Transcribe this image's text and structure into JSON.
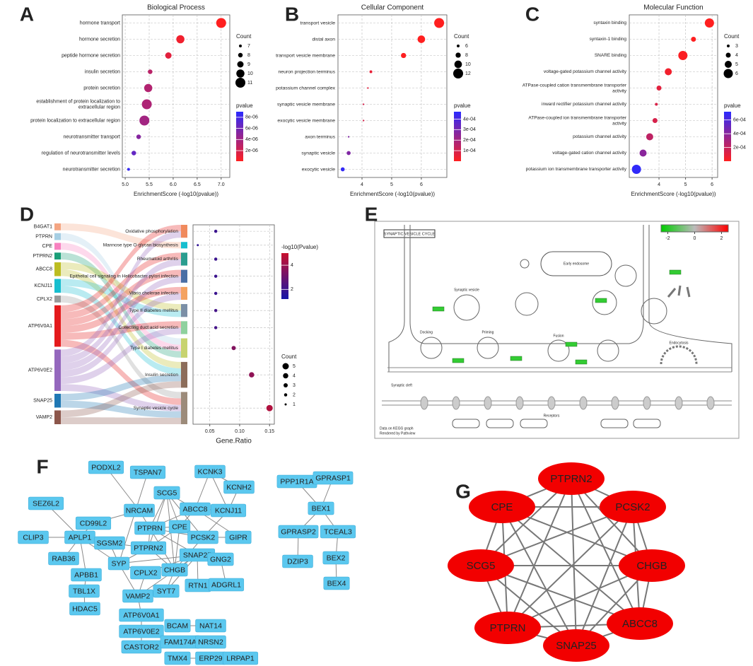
{
  "panel_labels": [
    "A",
    "B",
    "C",
    "D",
    "E",
    "F",
    "G"
  ],
  "chart_data": [
    {
      "type": "dot",
      "title": "Biological Process",
      "xlabel": "EnrichmentScore (-log10(pvalue))",
      "categories": [
        "hormone transport",
        "hormone secretion",
        "peptide hormone secretion",
        "insulin secretion",
        "protein secretion",
        "establishment of protein localization to extracellular region",
        "protein localization to extracellular region",
        "neurotransmitter transport",
        "regulation of neurotransmitter levels",
        "neurotransmitter secretion"
      ],
      "values": [
        7.0,
        6.15,
        5.9,
        5.52,
        5.48,
        5.45,
        5.4,
        5.28,
        5.18,
        5.07
      ],
      "counts": [
        11,
        10,
        9,
        8,
        10,
        11,
        11,
        8,
        8,
        7
      ],
      "pvalues": [
        1e-07,
        7e-07,
        1.3e-06,
        3e-06,
        3.3e-06,
        3.5e-06,
        4e-06,
        5.2e-06,
        6.6e-06,
        8.5e-06
      ],
      "xlim": [
        4.94,
        7.18
      ],
      "xticks": [
        {
          "value": 5,
          "label": "5.0"
        },
        5.5,
        {
          "value": 6,
          "label": "6.0"
        },
        6.5,
        {
          "value": 7,
          "label": "7.0"
        }
      ],
      "size_title": "Count",
      "size_ticks": [
        7,
        8,
        9,
        10,
        11
      ],
      "color_title": "pvalue",
      "color_lim": [
        1e-07,
        9e-06
      ],
      "color_range": [
        "#ff1f1f",
        "#2a2aff"
      ],
      "color_ticks": [
        {
          "value": 8e-06,
          "label": "8e-06"
        },
        {
          "value": 6e-06,
          "label": "6e-06"
        },
        {
          "value": 4e-06,
          "label": "4e-06"
        },
        {
          "value": 2e-06,
          "label": "2e-06"
        }
      ],
      "grid": true
    },
    {
      "type": "dot",
      "title": "Cellular Component",
      "xlabel": "EnrichmentScore (-log10(pvalue))",
      "categories": [
        "transport vesicle",
        "distal axon",
        "transport vesicle membrane",
        "neuron projection terminus",
        "potassium channel complex",
        "synaptic vesicle membrane",
        "exocytic vesicle membrane",
        "axon terminus",
        "synaptic vesicle",
        "exocytic vesicle"
      ],
      "values": [
        6.6,
        6.0,
        5.4,
        4.3,
        4.2,
        4.05,
        4.05,
        3.55,
        3.55,
        3.35
      ],
      "counts": [
        12,
        10,
        8,
        6,
        5,
        5,
        5,
        5,
        7,
        7
      ],
      "pvalues": [
        2.5e-07,
        1e-06,
        4e-06,
        5e-05,
        6.3e-05,
        9e-05,
        9e-05,
        0.00028,
        0.00028,
        0.00045
      ],
      "xlim": [
        3.19,
        6.86
      ],
      "xticks": [
        4,
        5,
        6
      ],
      "size_title": "Count",
      "size_ticks": [
        6,
        8,
        10,
        12
      ],
      "color_title": "pvalue",
      "color_lim": [
        1e-07,
        0.00047
      ],
      "color_range": [
        "#ff1f1f",
        "#2a2aff"
      ],
      "color_ticks": [
        {
          "value": 0.0004,
          "label": "4e-04"
        },
        {
          "value": 0.0003,
          "label": "3e-04"
        },
        {
          "value": 0.0002,
          "label": "2e-04"
        },
        {
          "value": 0.0001,
          "label": "1e-04"
        }
      ],
      "grid": true
    },
    {
      "type": "dot",
      "title": "Molecular Function",
      "xlabel": "EnrichmentScore (-log10(pvalue))",
      "categories": [
        "syntaxin binding",
        "syntaxin-1 binding",
        "SNARE binding",
        "voltage-gated potassium channel activity",
        "ATPase-coupled cation transmembrane transporter activity",
        "inward rectifier potassium channel activity",
        "ATPase-coupled ion transmembrane transporter activity",
        "potassium channel activity",
        "voltage-gated cation channel activity",
        "potassium ion transmembrane transporter activity"
      ],
      "values": [
        5.9,
        5.3,
        4.9,
        4.35,
        4.0,
        3.9,
        3.85,
        3.65,
        3.4,
        3.15
      ],
      "counts": [
        6,
        4,
        6,
        5,
        4,
        3,
        4,
        5,
        5,
        6
      ],
      "pvalues": [
        1.3e-06,
        5e-06,
        1.3e-05,
        4.5e-05,
        0.0001,
        0.00013,
        0.00014,
        0.00022,
        0.0004,
        0.0007
      ],
      "xlim": [
        2.88,
        6.21
      ],
      "xticks": [
        4,
        5,
        6
      ],
      "size_title": "Count",
      "size_ticks": [
        3,
        4,
        5,
        6
      ],
      "color_title": "pvalue",
      "color_lim": [
        1e-06,
        0.00072
      ],
      "color_range": [
        "#ff1f1f",
        "#2a2aff"
      ],
      "color_ticks": [
        {
          "value": 0.0006,
          "label": "6e-04"
        },
        {
          "value": 0.0004,
          "label": "4e-04"
        },
        {
          "value": 0.0002,
          "label": "2e-04"
        }
      ],
      "grid": true
    },
    {
      "type": "dot",
      "xlabel": "Gene.Ratio",
      "categories": [
        "Oxidative phosphorylation",
        "Mannose type O-glycan biosynthesis",
        "Rheumatoid arthritis",
        "Epithelial cell signaling in Helicobacter pylori infection",
        "Vibrio cholerae infection",
        "Type II diabetes mellitus",
        "Collecting duct acid secretion",
        "Type I diabetes mellitus",
        "Insulin secretion",
        "Synaptic vesicle cycle"
      ],
      "values": [
        0.06,
        0.03,
        0.06,
        0.06,
        0.06,
        0.06,
        0.06,
        0.09,
        0.12,
        0.15
      ],
      "counts": [
        2,
        1,
        2,
        2,
        2,
        2,
        2,
        3,
        4,
        5
      ],
      "neg_log10_pvalues": [
        2.0,
        1.8,
        2.0,
        2.0,
        2.0,
        2.2,
        2.2,
        3.5,
        3.8,
        4.5
      ],
      "xlim": [
        0.022,
        0.158
      ],
      "xticks": [
        0.05,
        {
          "value": 0.1,
          "label": "0.10"
        },
        0.15
      ],
      "size_title": "Count",
      "size_ticks": [
        5,
        4,
        3,
        2,
        1
      ],
      "color_title": "-log10(Pvalue)",
      "color_lim": [
        1.2,
        5
      ],
      "color_range": [
        "#1515a8",
        "#c8102e"
      ],
      "color_ticks": [
        4,
        2
      ],
      "grid": true
    }
  ],
  "sankey": {
    "genes": [
      "B4GAT1",
      "PTPRN",
      "CPE",
      "PTPRN2",
      "ABCC8",
      "KCNJ11",
      "CPLX2",
      "ATP6V0A1",
      "ATP6V0E2",
      "SNAP25",
      "VAMP2"
    ],
    "gene_colors": [
      "#f4a582",
      "#a6cee3",
      "#f781bf",
      "#1b9e77",
      "#bcbd22",
      "#17becf",
      "#999999",
      "#e41a1c",
      "#9467bd",
      "#1f78b4",
      "#8c564b"
    ],
    "pathway_colors": [
      "#f08a5d",
      "#17becf",
      "#2a9d8f",
      "#4a6fa5",
      "#f4a261",
      "#7b8fa6",
      "#8fd19e",
      "#c7d36f",
      "#8c6d5a",
      "#9c8b7a"
    ],
    "links": [
      [
        0,
        1
      ],
      [
        1,
        7
      ],
      [
        2,
        7
      ],
      [
        3,
        7
      ],
      [
        4,
        5
      ],
      [
        4,
        8
      ],
      [
        5,
        5
      ],
      [
        5,
        8
      ],
      [
        6,
        9
      ],
      [
        7,
        0
      ],
      [
        7,
        2
      ],
      [
        7,
        3
      ],
      [
        7,
        4
      ],
      [
        7,
        6
      ],
      [
        7,
        9
      ],
      [
        8,
        0
      ],
      [
        8,
        2
      ],
      [
        8,
        3
      ],
      [
        8,
        4
      ],
      [
        8,
        6
      ],
      [
        8,
        9
      ],
      [
        9,
        8
      ],
      [
        9,
        9
      ],
      [
        10,
        8
      ],
      [
        10,
        9
      ]
    ]
  },
  "pathway_map": {
    "title": "SYNAPTIC VESICLE CYCLE",
    "legend_lim": [
      -2.5,
      2.5
    ],
    "legend_ticks": [
      -2,
      0,
      2
    ],
    "labels": [
      "Early endosome",
      "Synaptic vesicle",
      "Docking",
      "Priming",
      "Fusion",
      "Endocytosis",
      "Synaptic cleft",
      "Receptors"
    ],
    "footer": [
      "Data on KEGG graph",
      "Rendered by Pathview"
    ]
  },
  "ppi_network": {
    "nodes": [
      "PODXL2",
      "TSPAN7",
      "KCNK3",
      "KCNH2",
      "SEZ6L2",
      "NRCAM",
      "SCG5",
      "ABCC8",
      "KCNJ11",
      "CD99L2",
      "PTPRN",
      "CPE",
      "CLIP3",
      "APLP1",
      "SGSM2",
      "PCSK2",
      "GIPR",
      "PTPRN2",
      "SNAP25",
      "RAB36",
      "SYP",
      "CPLX2",
      "CHGB",
      "GNG2",
      "APBB1",
      "SYT7",
      "RTN1",
      "ADGRL1",
      "TBL1X",
      "VAMP2",
      "HDAC5",
      "ATP6V0A1",
      "ATP6V0E2",
      "CASTOR2",
      "BCAM",
      "NAT14",
      "FAM174A",
      "NRSN2",
      "TMX4",
      "ERP29",
      "LRPAP1",
      "PPP1R1A",
      "GPRASP1",
      "BEX1",
      "GPRASP2",
      "TCEAL3",
      "DZIP3",
      "BEX2",
      "BEX4"
    ],
    "edges": [
      [
        13,
        12
      ],
      [
        13,
        4
      ],
      [
        13,
        19
      ],
      [
        13,
        24
      ],
      [
        13,
        9
      ],
      [
        13,
        14
      ],
      [
        13,
        20
      ],
      [
        24,
        28
      ],
      [
        28,
        30
      ],
      [
        0,
        5
      ],
      [
        5,
        10
      ],
      [
        1,
        20
      ],
      [
        5,
        9
      ],
      [
        6,
        10
      ],
      [
        6,
        11
      ],
      [
        6,
        15
      ],
      [
        6,
        7
      ],
      [
        6,
        22
      ],
      [
        6,
        17
      ],
      [
        2,
        3
      ],
      [
        2,
        7
      ],
      [
        2,
        8
      ],
      [
        3,
        8
      ],
      [
        7,
        8
      ],
      [
        7,
        10
      ],
      [
        7,
        11
      ],
      [
        7,
        16
      ],
      [
        8,
        15
      ],
      [
        10,
        11
      ],
      [
        10,
        15
      ],
      [
        10,
        22
      ],
      [
        10,
        17
      ],
      [
        10,
        18
      ],
      [
        11,
        15
      ],
      [
        11,
        22
      ],
      [
        11,
        17
      ],
      [
        15,
        22
      ],
      [
        15,
        16
      ],
      [
        17,
        22
      ],
      [
        17,
        20
      ],
      [
        18,
        20
      ],
      [
        18,
        22
      ],
      [
        18,
        29
      ],
      [
        18,
        25
      ],
      [
        18,
        21
      ],
      [
        18,
        23
      ],
      [
        18,
        26
      ],
      [
        20,
        29
      ],
      [
        20,
        21
      ],
      [
        20,
        14
      ],
      [
        21,
        29
      ],
      [
        22,
        25
      ],
      [
        23,
        27
      ],
      [
        29,
        25
      ],
      [
        29,
        31
      ],
      [
        31,
        32
      ],
      [
        32,
        33
      ],
      [
        34,
        35
      ],
      [
        36,
        37
      ],
      [
        38,
        39
      ],
      [
        39,
        40
      ],
      [
        41,
        43
      ],
      [
        42,
        43
      ],
      [
        43,
        44
      ],
      [
        43,
        45
      ],
      [
        44,
        46
      ],
      [
        45,
        47
      ],
      [
        47,
        48
      ],
      [
        14,
        17
      ]
    ]
  },
  "hub_network": {
    "nodes": [
      "PTPRN2",
      "CPE",
      "PCSK2",
      "SCG5",
      "CHGB",
      "PTPRN",
      "ABCC8",
      "SNAP25"
    ]
  }
}
